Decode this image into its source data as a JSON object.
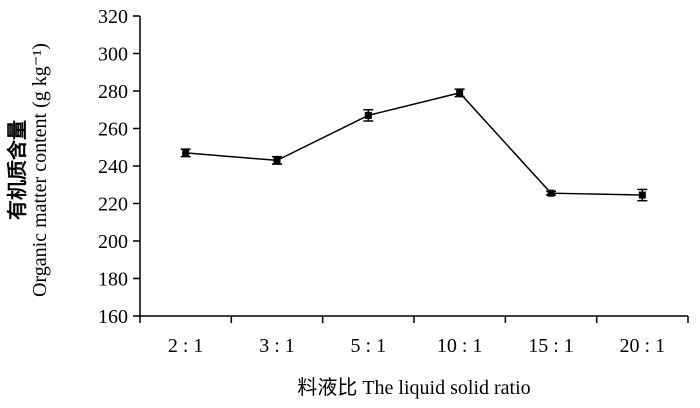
{
  "chart_data": {
    "type": "line",
    "categories": [
      "2 : 1",
      "3 : 1",
      "5 : 1",
      "10 : 1",
      "15 : 1",
      "20 : 1"
    ],
    "values": [
      247,
      243,
      267,
      279,
      225.5,
      224.5
    ],
    "errors": [
      2,
      2,
      3,
      2,
      1,
      3
    ],
    "xlabel": "料液比 The liquid solid ratio",
    "ylabel_cn": "有机质含量",
    "ylabel_en": "Organic matter content (g kg⁻¹)",
    "ylim": [
      160,
      320
    ],
    "ytick_step": 20,
    "grid": false,
    "legend": "none"
  }
}
